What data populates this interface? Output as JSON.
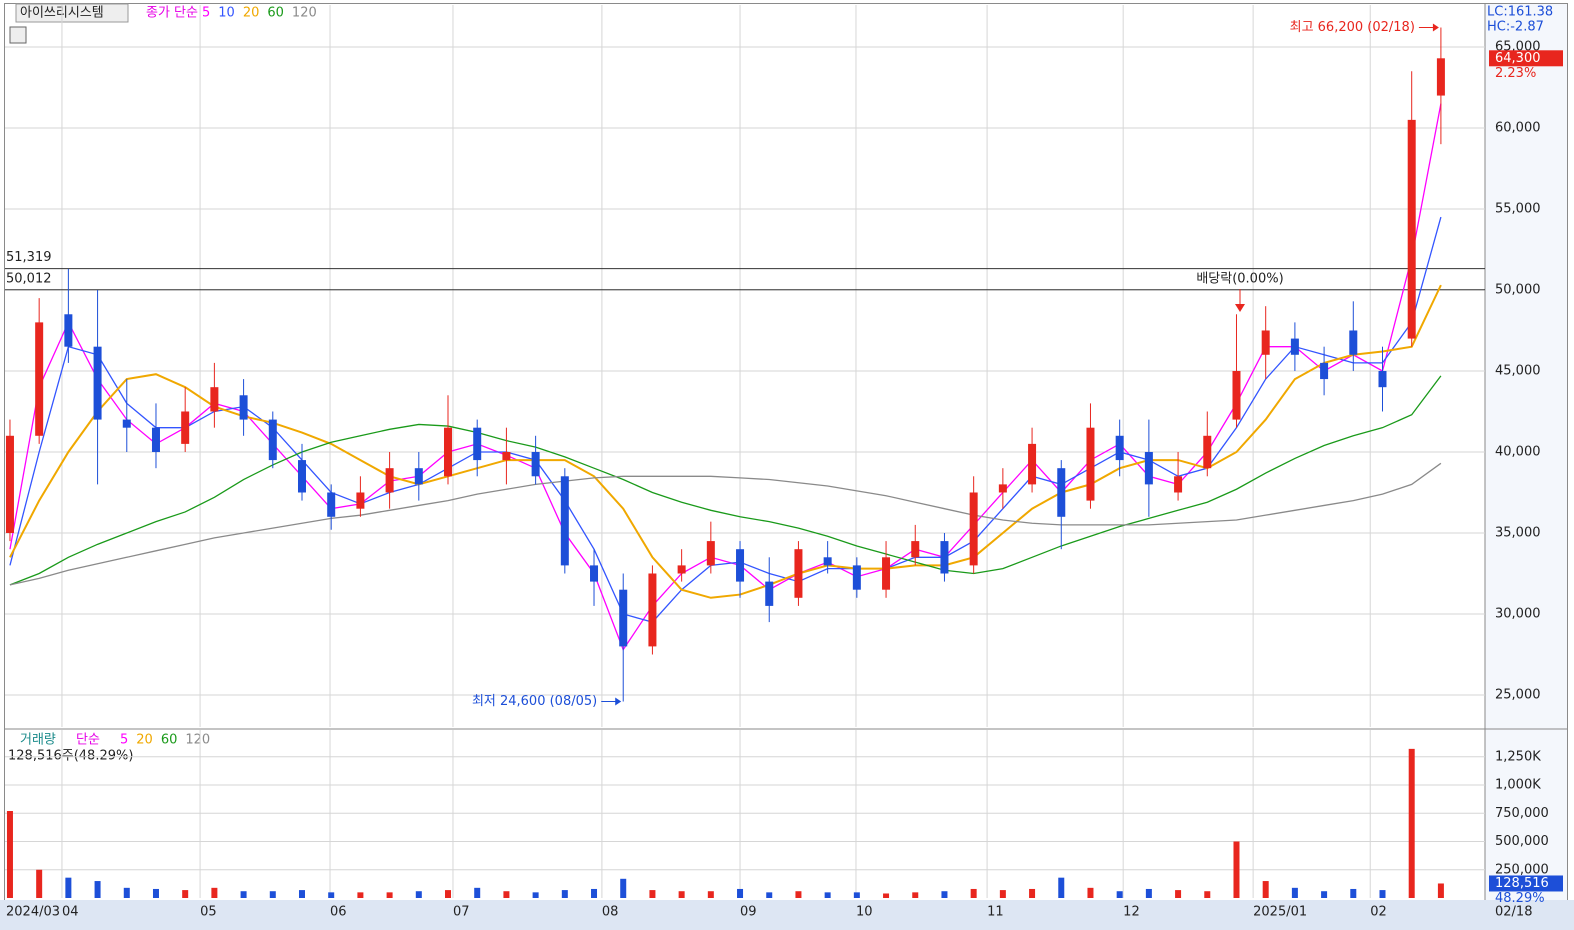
{
  "header": {
    "name": "아이쓰리시스템",
    "ma_label": "종가 단순"
  },
  "chart_data": [
    {
      "type": "candlestick",
      "open": [
        35000,
        41000,
        48500,
        46500,
        42000,
        41500,
        40500,
        42500,
        43500,
        42000,
        39500,
        37500,
        36500,
        37500,
        39000,
        38500,
        41500,
        39500,
        40000,
        38500,
        33000,
        31500,
        28000,
        32500,
        33000,
        34000,
        32000,
        31000,
        33500,
        33000,
        31500,
        33500,
        34500,
        33000,
        37500,
        38000,
        39000,
        37000,
        41000,
        40000,
        37500,
        39000,
        42000,
        46000,
        47000,
        45500,
        47500,
        45000,
        47000,
        62000
      ],
      "high": [
        42000,
        49500,
        51300,
        50000,
        44500,
        43000,
        44000,
        45500,
        44500,
        42500,
        40500,
        38000,
        38500,
        40000,
        40000,
        43500,
        42000,
        41500,
        41000,
        39000,
        34000,
        32500,
        33000,
        34000,
        35700,
        34500,
        33500,
        34500,
        34500,
        33500,
        34500,
        35500,
        35000,
        38500,
        39000,
        41500,
        39500,
        43000,
        42000,
        42000,
        40000,
        42500,
        48500,
        49000,
        48000,
        46500,
        49300,
        46500,
        63500,
        66200
      ],
      "low": [
        34500,
        40500,
        45500,
        38000,
        40000,
        39000,
        40000,
        41500,
        41000,
        39000,
        37000,
        35200,
        36000,
        36500,
        37000,
        38000,
        38500,
        38000,
        38000,
        32500,
        30500,
        24600,
        27500,
        32000,
        32500,
        31000,
        29500,
        30500,
        32500,
        31000,
        31000,
        33000,
        32000,
        32500,
        36500,
        37500,
        34000,
        36500,
        38500,
        36000,
        37000,
        38500,
        41500,
        44500,
        45000,
        43500,
        45000,
        42500,
        46500,
        59000
      ],
      "close": [
        41000,
        48000,
        46500,
        42000,
        41500,
        40000,
        42500,
        44000,
        42000,
        39500,
        37500,
        36000,
        37500,
        39000,
        38000,
        41500,
        39500,
        40000,
        38500,
        33000,
        32000,
        28000,
        32500,
        33000,
        34500,
        32000,
        30500,
        34000,
        33000,
        31500,
        33500,
        34500,
        32500,
        37500,
        38000,
        40500,
        36000,
        41500,
        39500,
        38000,
        38500,
        41000,
        45000,
        47500,
        46000,
        44500,
        46000,
        44000,
        60500,
        64300
      ],
      "series": [
        {
          "name": "5",
          "color": "#ff00ff",
          "values": [
            34000,
            44000,
            48000,
            44500,
            42000,
            40500,
            41500,
            43000,
            42500,
            40500,
            38500,
            36500,
            36800,
            38200,
            38500,
            40000,
            40500,
            39800,
            39000,
            35000,
            32500,
            27800,
            30500,
            32500,
            33500,
            33000,
            31500,
            32500,
            33200,
            32300,
            32800,
            34000,
            33500,
            35500,
            37500,
            39500,
            37500,
            39500,
            40500,
            38500,
            38000,
            40000,
            43000,
            46500,
            46500,
            45000,
            46000,
            45000,
            52000,
            61500
          ]
        },
        {
          "name": "10",
          "color": "#3355ff",
          "values": [
            33000,
            40000,
            46500,
            46000,
            43000,
            41500,
            41500,
            42500,
            42800,
            41500,
            39500,
            37500,
            36800,
            37500,
            38000,
            39000,
            40000,
            40000,
            39500,
            37000,
            34000,
            30000,
            29500,
            31500,
            33000,
            33200,
            32500,
            32000,
            32800,
            32800,
            32800,
            33500,
            33500,
            34500,
            36500,
            38500,
            38000,
            39000,
            40000,
            39500,
            38500,
            39000,
            41500,
            44500,
            46500,
            46000,
            45500,
            45500,
            48000,
            54500
          ]
        },
        {
          "name": "20",
          "color": "#f0a800",
          "values": [
            33500,
            37000,
            40000,
            42500,
            44500,
            44800,
            44000,
            42800,
            42200,
            41800,
            41200,
            40500,
            39500,
            38500,
            38000,
            38500,
            39000,
            39500,
            39500,
            39500,
            38500,
            36500,
            33500,
            31500,
            31000,
            31200,
            31800,
            32500,
            33000,
            32800,
            32800,
            33000,
            33000,
            33500,
            35000,
            36500,
            37500,
            38000,
            39000,
            39500,
            39500,
            39000,
            40000,
            42000,
            44500,
            45500,
            46000,
            46200,
            46500,
            50300
          ]
        },
        {
          "name": "60",
          "color": "#1a9a1a",
          "values": [
            31800,
            32500,
            33500,
            34300,
            35000,
            35700,
            36300,
            37200,
            38300,
            39200,
            40000,
            40600,
            41000,
            41400,
            41700,
            41600,
            41200,
            40700,
            40300,
            39700,
            39000,
            38300,
            37500,
            36900,
            36400,
            36000,
            35700,
            35300,
            34800,
            34200,
            33700,
            33200,
            32700,
            32500,
            32800,
            33500,
            34200,
            34800,
            35400,
            35900,
            36400,
            36900,
            37700,
            38700,
            39600,
            40400,
            41000,
            41500,
            42300,
            44700
          ]
        },
        {
          "name": "120",
          "color": "#8a8a8a",
          "values": [
            31800,
            32200,
            32700,
            33100,
            33500,
            33900,
            34300,
            34700,
            35000,
            35300,
            35600,
            35900,
            36100,
            36400,
            36700,
            37000,
            37400,
            37700,
            38000,
            38200,
            38400,
            38500,
            38500,
            38500,
            38500,
            38400,
            38300,
            38100,
            37900,
            37600,
            37300,
            36900,
            36500,
            36100,
            35800,
            35600,
            35500,
            35500,
            35500,
            35500,
            35600,
            35700,
            35800,
            36100,
            36400,
            36700,
            37000,
            37400,
            38000,
            39300
          ]
        }
      ],
      "up_color": "#e8261e",
      "down_color": "#1d4fd8",
      "ylim": [
        23025,
        67590
      ],
      "yticks": [
        {
          "value": 25000,
          "label": "25,000"
        },
        {
          "value": 30000,
          "label": "30,000"
        },
        {
          "value": 35000,
          "label": "35,000"
        },
        {
          "value": 40000,
          "label": "40,000"
        },
        {
          "value": 45000,
          "label": "45,000"
        },
        {
          "value": 50000,
          "label": "50,000"
        },
        {
          "value": 55000,
          "label": "55,000"
        },
        {
          "value": 60000,
          "label": "60,000"
        },
        {
          "value": 65000,
          "label": "65,000"
        }
      ],
      "xlim": [
        -0.17,
        50.51
      ],
      "xticks": [
        {
          "value": -0.17,
          "label": "2024/03"
        },
        {
          "value": 1.78,
          "label": "04"
        },
        {
          "value": 6.51,
          "label": "05"
        },
        {
          "value": 10.96,
          "label": "06"
        },
        {
          "value": 15.17,
          "label": "07"
        },
        {
          "value": 20.27,
          "label": "08"
        },
        {
          "value": 25.0,
          "label": "09"
        },
        {
          "value": 28.97,
          "label": "10"
        },
        {
          "value": 33.46,
          "label": "11"
        },
        {
          "value": 38.12,
          "label": "12"
        },
        {
          "value": 42.57,
          "label": "2025/01"
        },
        {
          "value": 46.58,
          "label": "02"
        }
      ],
      "end_date": "02/18",
      "grid": true,
      "hlines": [
        {
          "value": 51319,
          "label": "51,319"
        },
        {
          "value": 50012,
          "label": "50,012"
        }
      ],
      "high_note": {
        "label": "최고 66,200 (02/18)",
        "value": 66200
      },
      "low_note": {
        "label": "최저 24,600 (08/05)",
        "value": 24600
      },
      "event": "배당락(0.00%)",
      "last": {
        "value": 64300,
        "label": "64,300",
        "change": "2.23%"
      },
      "lc": "LC:161.38",
      "hc": "HC:-2.87"
    },
    {
      "type": "bar",
      "title": "거래량",
      "ma_label": "단순",
      "ma_legend": [
        {
          "name": "5",
          "color": "#ff00ff"
        },
        {
          "name": "20",
          "color": "#f0a800"
        },
        {
          "name": "60",
          "color": "#1a9a1a"
        },
        {
          "name": "120",
          "color": "#8a8a8a"
        }
      ],
      "summary": "128,516주(48.29%)",
      "values": [
        770000,
        250000,
        180000,
        150000,
        90000,
        80000,
        70000,
        90000,
        60000,
        60000,
        70000,
        50000,
        50000,
        50000,
        60000,
        70000,
        90000,
        60000,
        50000,
        70000,
        80000,
        170000,
        70000,
        60000,
        60000,
        80000,
        50000,
        60000,
        50000,
        50000,
        40000,
        50000,
        60000,
        80000,
        70000,
        80000,
        180000,
        90000,
        60000,
        80000,
        70000,
        60000,
        500000,
        150000,
        90000,
        60000,
        80000,
        70000,
        1320000,
        128516
      ],
      "ylim": [
        0,
        1487000
      ],
      "yticks": [
        {
          "value": 250000,
          "label": "250,000"
        },
        {
          "value": 500000,
          "label": "500,000"
        },
        {
          "value": 750000,
          "label": "750,000"
        },
        {
          "value": 1000000,
          "label": "1,000K"
        },
        {
          "value": 1250000,
          "label": "1,250K"
        }
      ],
      "last": {
        "label": "128,516",
        "change": "48.29%"
      }
    }
  ]
}
